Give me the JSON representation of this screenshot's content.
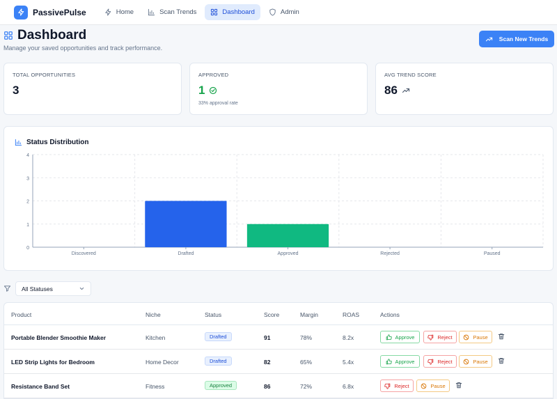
{
  "nav": {
    "brand": "PassivePulse",
    "links": [
      {
        "label": "Home",
        "icon": "zap-icon",
        "active": false
      },
      {
        "label": "Scan Trends",
        "icon": "bar-chart-icon",
        "active": false
      },
      {
        "label": "Dashboard",
        "icon": "layout-grid-icon",
        "active": true
      },
      {
        "label": "Admin",
        "icon": "shield-icon",
        "active": false
      }
    ]
  },
  "header": {
    "title": "Dashboard",
    "subtitle": "Manage your saved opportunities and track performance.",
    "scan_button": "Scan New Trends"
  },
  "stats": {
    "total": {
      "label": "TOTAL OPPORTUNITIES",
      "value": "3"
    },
    "approved": {
      "label": "APPROVED",
      "value": "1",
      "sub": "33% approval rate"
    },
    "score": {
      "label": "AVG TREND SCORE",
      "value": "86"
    }
  },
  "colors": {
    "accent": "#3b82f6",
    "drafted_bar": "#2563eb",
    "approved_bar": "#10b981"
  },
  "chart_data": {
    "type": "bar",
    "title": "Status Distribution",
    "categories": [
      "Discovered",
      "Drafted",
      "Approved",
      "Rejected",
      "Paused"
    ],
    "values": [
      0,
      2,
      1,
      0,
      0
    ],
    "bar_colors": [
      "#2563eb",
      "#2563eb",
      "#10b981",
      "#ef4444",
      "#f59e0b"
    ],
    "ylim": [
      0,
      4
    ],
    "yticks": [
      "0",
      "1",
      "2",
      "3",
      "4"
    ],
    "grid": true
  },
  "filter": {
    "selected": "All Statuses"
  },
  "table": {
    "columns": [
      "Product",
      "Niche",
      "Status",
      "Score",
      "Margin",
      "ROAS",
      "Actions"
    ],
    "rows": [
      {
        "product": "Portable Blender Smoothie Maker",
        "niche": "Kitchen",
        "status": "Drafted",
        "score": "91",
        "margin": "78%",
        "roas": "8.2x",
        "actions": [
          "Approve",
          "Reject",
          "Pause"
        ]
      },
      {
        "product": "LED Strip Lights for Bedroom",
        "niche": "Home Decor",
        "status": "Drafted",
        "score": "82",
        "margin": "65%",
        "roas": "5.4x",
        "actions": [
          "Approve",
          "Reject",
          "Pause"
        ]
      },
      {
        "product": "Resistance Band Set",
        "niche": "Fitness",
        "status": "Approved",
        "score": "86",
        "margin": "72%",
        "roas": "6.8x",
        "actions": [
          "Reject",
          "Pause"
        ]
      }
    ]
  }
}
